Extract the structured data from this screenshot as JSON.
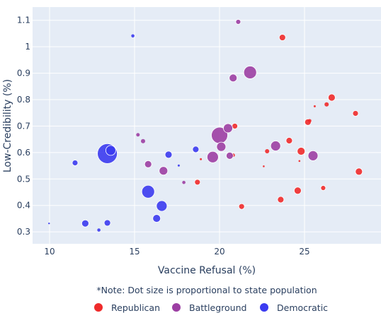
{
  "chart_data": {
    "type": "scatter",
    "xlabel": "Vaccine Refusal (%)",
    "ylabel": "Low-Credibility (%)",
    "xlim": [
      9,
      29.5
    ],
    "ylim": [
      0.255,
      1.15
    ],
    "x_ticks": [
      10,
      15,
      20,
      25
    ],
    "y_ticks": [
      0.3,
      0.4,
      0.5,
      0.6,
      0.7,
      0.8,
      0.9,
      1,
      1.1
    ],
    "x_tick_labels": [
      "10",
      "15",
      "20",
      "25"
    ],
    "y_tick_labels": [
      "0.3",
      "0.4",
      "0.5",
      "0.6",
      "0.7",
      "0.8",
      "0.9",
      "1",
      "1.1"
    ],
    "grid": true,
    "plot_background": "#e5ecf6",
    "note": "*Note: Dot size is proportional to state population",
    "legend_position": "bottom",
    "series": [
      {
        "name": "Republican",
        "color": "#ef2b2b",
        "points": [
          {
            "x": 23.7,
            "y": 1.035,
            "size": 4.5
          },
          {
            "x": 26.6,
            "y": 0.808,
            "size": 5
          },
          {
            "x": 26.3,
            "y": 0.782,
            "size": 3
          },
          {
            "x": 25.6,
            "y": 0.775,
            "size": 1.5
          },
          {
            "x": 28.0,
            "y": 0.748,
            "size": 4
          },
          {
            "x": 25.2,
            "y": 0.715,
            "size": 4.5
          },
          {
            "x": 25.3,
            "y": 0.72,
            "size": 2.5
          },
          {
            "x": 20.9,
            "y": 0.7,
            "size": 4
          },
          {
            "x": 24.1,
            "y": 0.645,
            "size": 4.5
          },
          {
            "x": 24.8,
            "y": 0.605,
            "size": 5.5
          },
          {
            "x": 22.8,
            "y": 0.605,
            "size": 3
          },
          {
            "x": 20.8,
            "y": 0.59,
            "size": 2.5
          },
          {
            "x": 18.9,
            "y": 0.575,
            "size": 1.5
          },
          {
            "x": 24.7,
            "y": 0.568,
            "size": 1.3
          },
          {
            "x": 22.6,
            "y": 0.548,
            "size": 1.3
          },
          {
            "x": 28.2,
            "y": 0.528,
            "size": 5
          },
          {
            "x": 18.7,
            "y": 0.488,
            "size": 4
          },
          {
            "x": 24.6,
            "y": 0.456,
            "size": 5
          },
          {
            "x": 26.1,
            "y": 0.466,
            "size": 3.5
          },
          {
            "x": 23.6,
            "y": 0.422,
            "size": 4.5
          },
          {
            "x": 21.3,
            "y": 0.396,
            "size": 4
          }
        ]
      },
      {
        "name": "Battleground",
        "color": "#9c3fa3",
        "points": [
          {
            "x": 21.1,
            "y": 1.094,
            "size": 3.5
          },
          {
            "x": 21.8,
            "y": 0.903,
            "size": 9
          },
          {
            "x": 20.8,
            "y": 0.882,
            "size": 5.5
          },
          {
            "x": 20.5,
            "y": 0.692,
            "size": 6.5
          },
          {
            "x": 20.0,
            "y": 0.665,
            "size": 11.5
          },
          {
            "x": 23.3,
            "y": 0.625,
            "size": 7
          },
          {
            "x": 20.1,
            "y": 0.622,
            "size": 6.5
          },
          {
            "x": 25.5,
            "y": 0.588,
            "size": 7
          },
          {
            "x": 20.6,
            "y": 0.588,
            "size": 5
          },
          {
            "x": 19.6,
            "y": 0.583,
            "size": 8
          },
          {
            "x": 15.2,
            "y": 0.667,
            "size": 2.5
          },
          {
            "x": 15.5,
            "y": 0.643,
            "size": 3
          },
          {
            "x": 15.8,
            "y": 0.556,
            "size": 5
          },
          {
            "x": 16.7,
            "y": 0.531,
            "size": 6
          },
          {
            "x": 17.9,
            "y": 0.487,
            "size": 2.3
          }
        ]
      },
      {
        "name": "Democratic",
        "color": "#3b3bf0",
        "points": [
          {
            "x": 14.9,
            "y": 1.041,
            "size": 2.3
          },
          {
            "x": 13.4,
            "y": 0.596,
            "size": 14
          },
          {
            "x": 13.6,
            "y": 0.608,
            "size": 7
          },
          {
            "x": 18.6,
            "y": 0.612,
            "size": 4.5
          },
          {
            "x": 17.0,
            "y": 0.592,
            "size": 5
          },
          {
            "x": 11.5,
            "y": 0.561,
            "size": 4
          },
          {
            "x": 17.6,
            "y": 0.551,
            "size": 1.5
          },
          {
            "x": 15.8,
            "y": 0.452,
            "size": 9
          },
          {
            "x": 16.6,
            "y": 0.398,
            "size": 7.5
          },
          {
            "x": 16.3,
            "y": 0.351,
            "size": 5.5
          },
          {
            "x": 12.1,
            "y": 0.332,
            "size": 5
          },
          {
            "x": 13.4,
            "y": 0.334,
            "size": 4.5
          },
          {
            "x": 9.97,
            "y": 0.332,
            "size": 1.2
          },
          {
            "x": 12.9,
            "y": 0.307,
            "size": 2.3
          }
        ]
      }
    ]
  }
}
